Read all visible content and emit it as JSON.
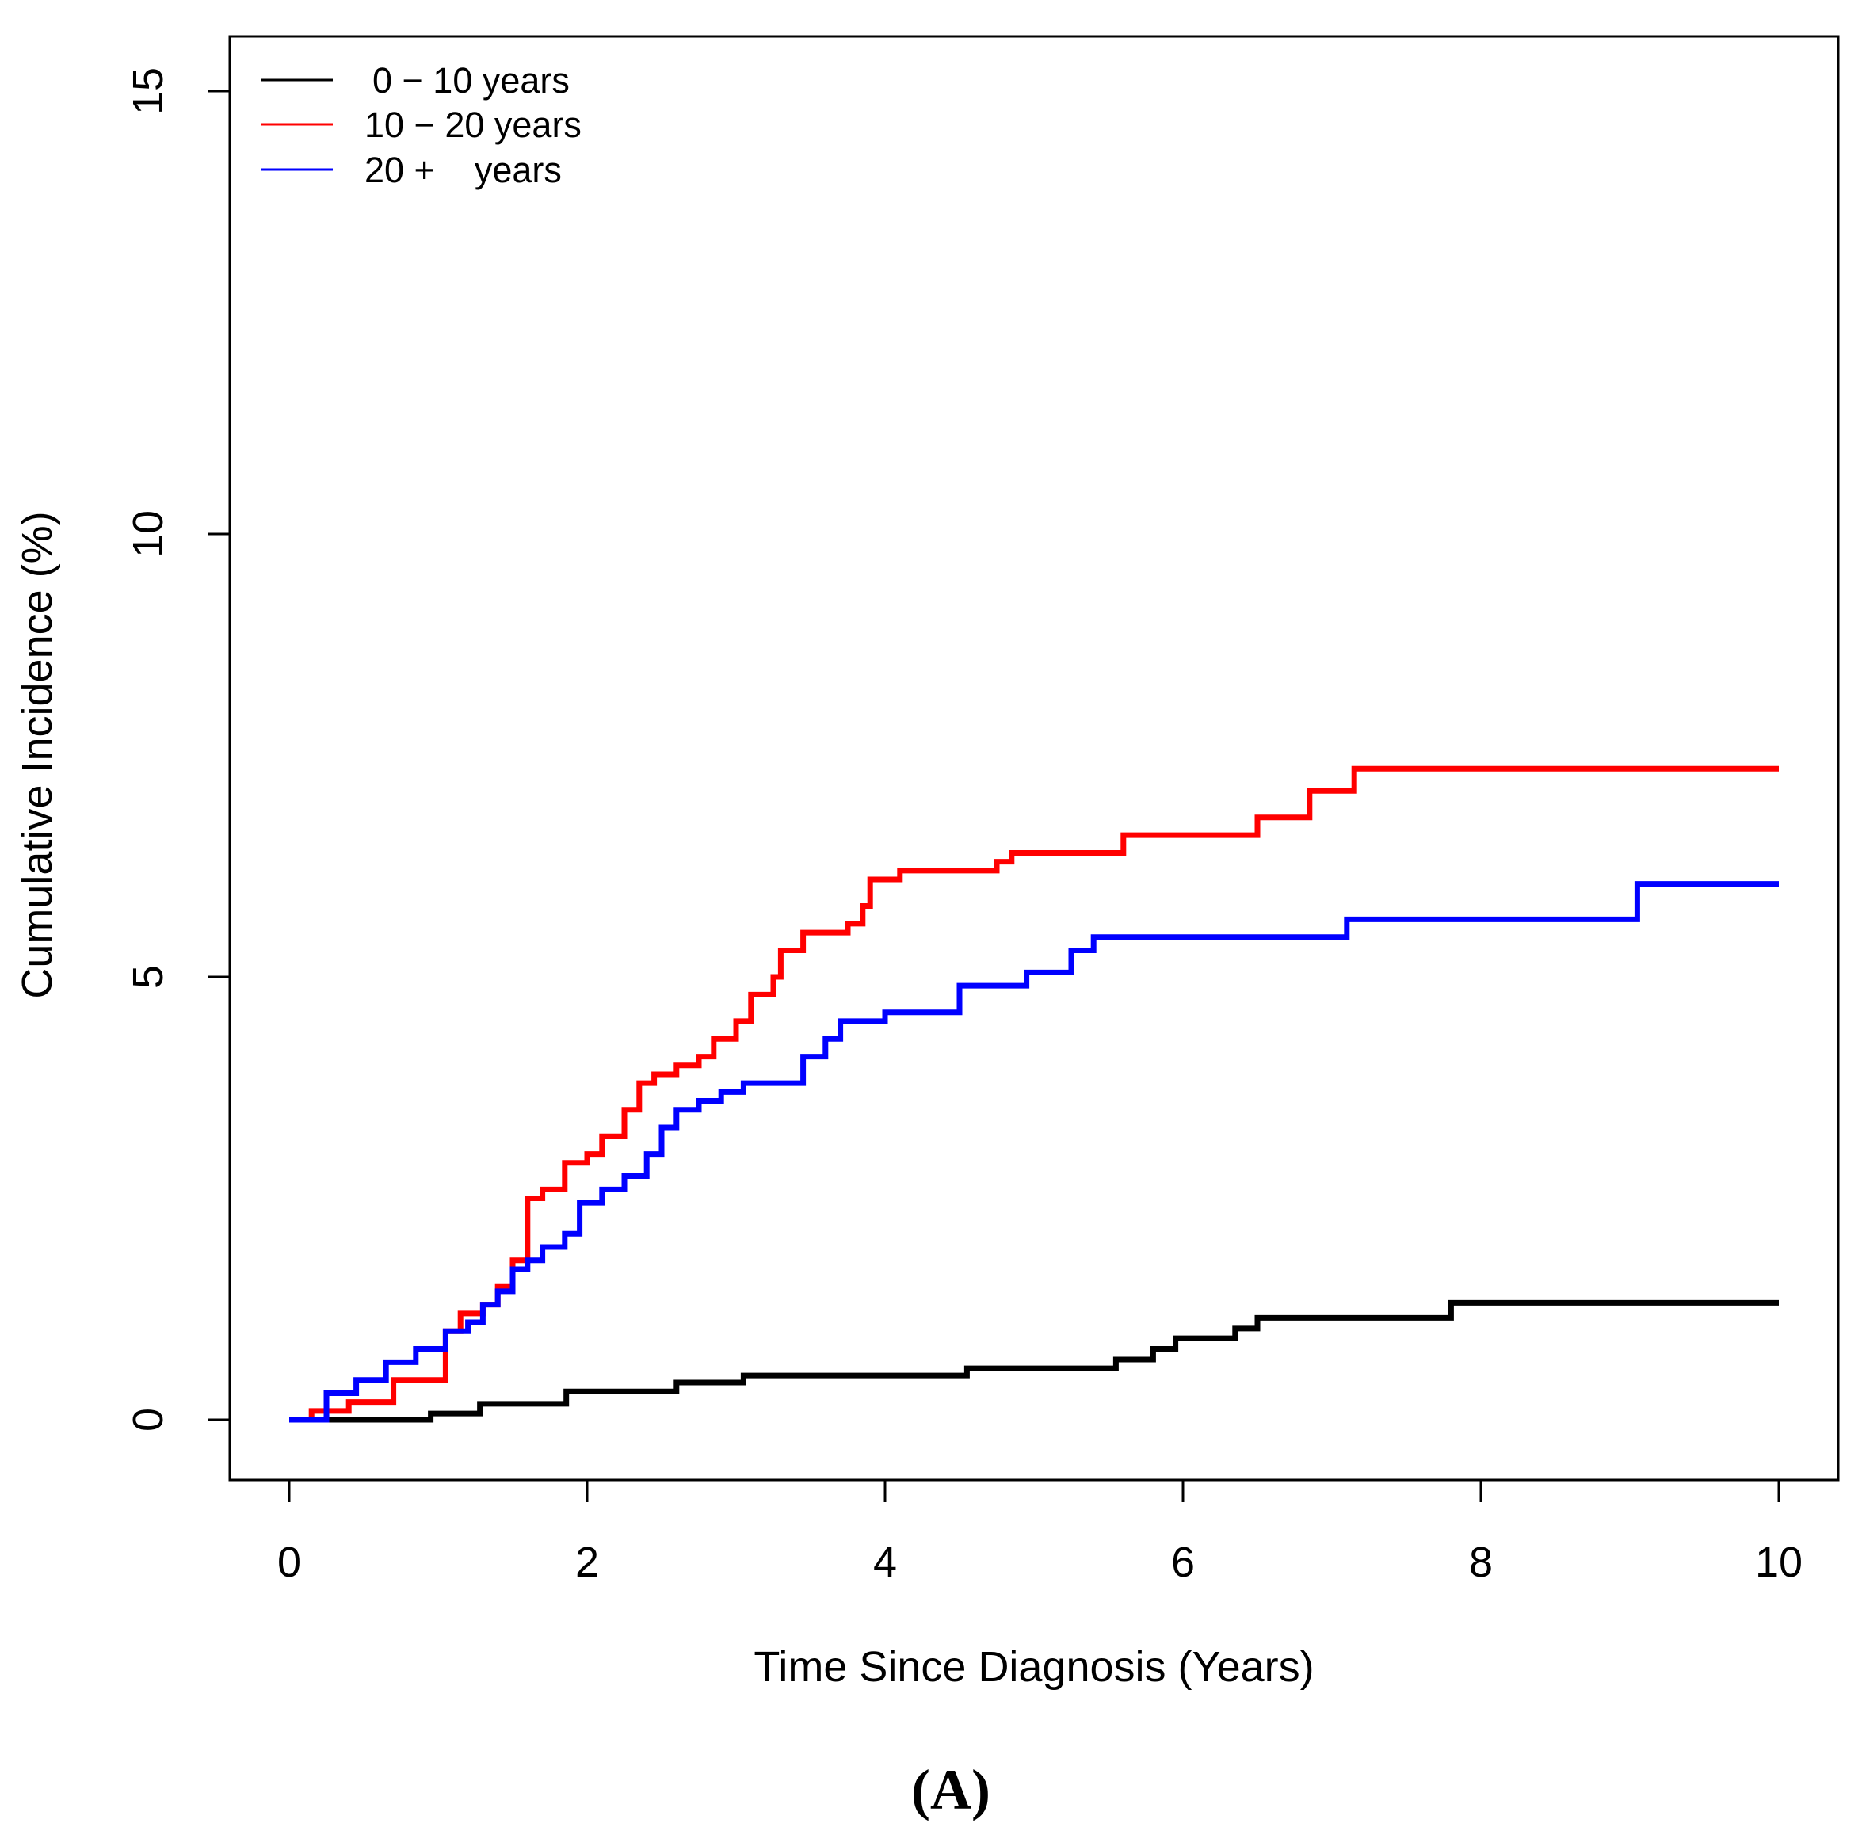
{
  "chart_data": {
    "type": "line",
    "step": true,
    "title": "",
    "panel_label": "(A)",
    "xlabel": "Time Since Diagnosis (Years)",
    "ylabel": "Cumulative Incidence (%)",
    "xlim": [
      0,
      10
    ],
    "ylim": [
      0,
      15
    ],
    "xticks": [
      0,
      2,
      4,
      6,
      8,
      10
    ],
    "yticks": [
      0,
      5,
      10,
      15
    ],
    "xtick_labels": [
      "0",
      "2",
      "4",
      "6",
      "8",
      "10"
    ],
    "ytick_labels": [
      "0",
      "5",
      "10",
      "15"
    ],
    "grid": false,
    "legend_position": "top-left",
    "series": [
      {
        "name": "0 − 10 years",
        "color": "#000000",
        "points": [
          [
            0,
            0
          ],
          [
            0.95,
            0
          ],
          [
            0.95,
            0.07
          ],
          [
            1.28,
            0.07
          ],
          [
            1.28,
            0.18
          ],
          [
            1.86,
            0.18
          ],
          [
            1.86,
            0.32
          ],
          [
            2.55,
            0.32
          ],
          [
            2.6,
            0.42
          ],
          [
            3.05,
            0.42
          ],
          [
            3.05,
            0.5
          ],
          [
            4.55,
            0.5
          ],
          [
            4.55,
            0.58
          ],
          [
            5.55,
            0.58
          ],
          [
            5.55,
            0.68
          ],
          [
            5.8,
            0.68
          ],
          [
            5.8,
            0.8
          ],
          [
            5.95,
            0.8
          ],
          [
            5.95,
            0.92
          ],
          [
            6.35,
            0.92
          ],
          [
            6.35,
            1.03
          ],
          [
            6.5,
            1.03
          ],
          [
            6.5,
            1.15
          ],
          [
            7.8,
            1.15
          ],
          [
            7.8,
            1.32
          ],
          [
            10,
            1.32
          ]
        ]
      },
      {
        "name": "10 − 20 years",
        "color": "#ff0000",
        "points": [
          [
            0,
            0
          ],
          [
            0.15,
            0
          ],
          [
            0.15,
            0.1
          ],
          [
            0.4,
            0.1
          ],
          [
            0.4,
            0.2
          ],
          [
            0.6,
            0.2
          ],
          [
            0.7,
            0.45
          ],
          [
            0.98,
            0.45
          ],
          [
            1.05,
            1.0
          ],
          [
            1.15,
            1.2
          ],
          [
            1.3,
            1.3
          ],
          [
            1.4,
            1.5
          ],
          [
            1.5,
            1.8
          ],
          [
            1.6,
            2.5
          ],
          [
            1.7,
            2.6
          ],
          [
            1.85,
            2.9
          ],
          [
            2.0,
            3.0
          ],
          [
            2.1,
            3.2
          ],
          [
            2.25,
            3.5
          ],
          [
            2.35,
            3.8
          ],
          [
            2.45,
            3.9
          ],
          [
            2.6,
            4.0
          ],
          [
            2.75,
            4.1
          ],
          [
            2.85,
            4.3
          ],
          [
            3.0,
            4.5
          ],
          [
            3.1,
            4.8
          ],
          [
            3.25,
            5.0
          ],
          [
            3.3,
            5.3
          ],
          [
            3.45,
            5.5
          ],
          [
            3.75,
            5.6
          ],
          [
            3.85,
            5.8
          ],
          [
            3.9,
            6.1
          ],
          [
            4.1,
            6.2
          ],
          [
            4.7,
            6.2
          ],
          [
            4.75,
            6.3
          ],
          [
            4.85,
            6.4
          ],
          [
            5.55,
            6.4
          ],
          [
            5.6,
            6.6
          ],
          [
            6.5,
            6.6
          ],
          [
            6.5,
            6.8
          ],
          [
            6.8,
            6.8
          ],
          [
            6.85,
            7.1
          ],
          [
            7.15,
            7.1
          ],
          [
            7.15,
            7.35
          ],
          [
            10,
            7.35
          ]
        ]
      },
      {
        "name": "20 +    years",
        "color": "#0000ff",
        "points": [
          [
            0,
            0
          ],
          [
            0.2,
            0
          ],
          [
            0.25,
            0.3
          ],
          [
            0.4,
            0.3
          ],
          [
            0.45,
            0.45
          ],
          [
            0.6,
            0.45
          ],
          [
            0.65,
            0.65
          ],
          [
            0.8,
            0.65
          ],
          [
            0.85,
            0.8
          ],
          [
            0.95,
            0.8
          ],
          [
            1.05,
            1.0
          ],
          [
            1.2,
            1.1
          ],
          [
            1.3,
            1.3
          ],
          [
            1.4,
            1.45
          ],
          [
            1.5,
            1.7
          ],
          [
            1.6,
            1.8
          ],
          [
            1.7,
            1.95
          ],
          [
            1.85,
            2.1
          ],
          [
            1.95,
            2.45
          ],
          [
            2.1,
            2.6
          ],
          [
            2.25,
            2.75
          ],
          [
            2.4,
            3.0
          ],
          [
            2.5,
            3.3
          ],
          [
            2.6,
            3.5
          ],
          [
            2.75,
            3.6
          ],
          [
            2.9,
            3.7
          ],
          [
            3.05,
            3.8
          ],
          [
            3.35,
            3.8
          ],
          [
            3.45,
            4.1
          ],
          [
            3.6,
            4.3
          ],
          [
            3.7,
            4.5
          ],
          [
            4.0,
            4.6
          ],
          [
            4.5,
            4.6
          ],
          [
            4.5,
            4.9
          ],
          [
            4.95,
            4.9
          ],
          [
            4.95,
            5.05
          ],
          [
            5.2,
            5.05
          ],
          [
            5.25,
            5.3
          ],
          [
            5.4,
            5.45
          ],
          [
            7.1,
            5.45
          ],
          [
            7.1,
            5.65
          ],
          [
            9.05,
            5.65
          ],
          [
            9.05,
            6.05
          ],
          [
            10,
            6.05
          ]
        ]
      }
    ]
  }
}
